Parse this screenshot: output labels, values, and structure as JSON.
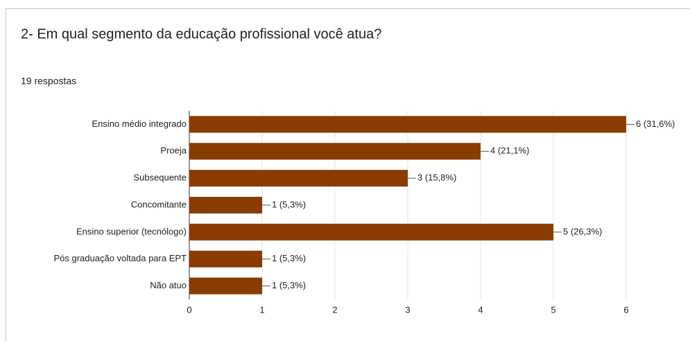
{
  "chart_data": {
    "type": "bar",
    "orientation": "horizontal",
    "title": "2- Em qual segmento da educação profissional você atua?",
    "subtitle": "19 respostas",
    "categories": [
      "Ensino médio integrado",
      "Proeja",
      "Subsequente",
      "Concomitante",
      "Ensino superior (tecnólogo)",
      "Pós graduação voltada para EPT",
      "Não atuo"
    ],
    "values": [
      6,
      4,
      3,
      1,
      5,
      1,
      1
    ],
    "value_labels": [
      "6 (31,6%)",
      "4 (21,1%)",
      "3 (15,8%)",
      "1 (5,3%)",
      "5 (26,3%)",
      "1 (5,3%)",
      "1 (5,3%)"
    ],
    "color": "#8a3c00",
    "xlim": [
      0,
      6
    ],
    "xticks": [
      0,
      1,
      2,
      3,
      4,
      5,
      6
    ],
    "grid": true
  }
}
